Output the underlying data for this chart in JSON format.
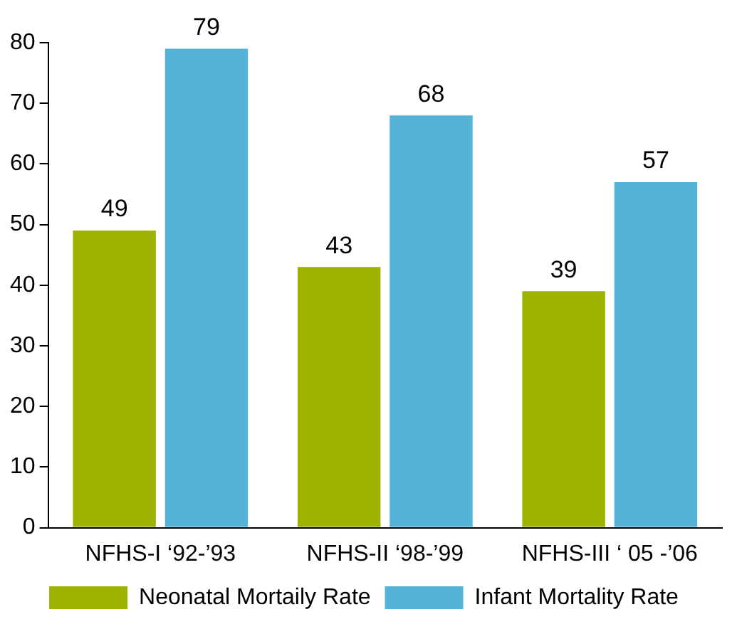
{
  "chart_data": {
    "type": "bar",
    "categories": [
      "NFHS-I ‘92-’93",
      "NFHS-II ‘98-’99",
      "NFHS-III ‘ 05 -’06"
    ],
    "series": [
      {
        "name": "Neonatal Mortaily Rate",
        "color": "#9db300",
        "values": [
          49,
          43,
          39
        ]
      },
      {
        "name": "Infant Mortality Rate",
        "color": "#54b3d6",
        "values": [
          79,
          68,
          57
        ]
      }
    ],
    "ylim": [
      0,
      80
    ],
    "yticks": [
      0,
      10,
      20,
      30,
      40,
      50,
      60,
      70,
      80
    ],
    "grid": false,
    "legend": "bottom",
    "data_labels": true
  }
}
